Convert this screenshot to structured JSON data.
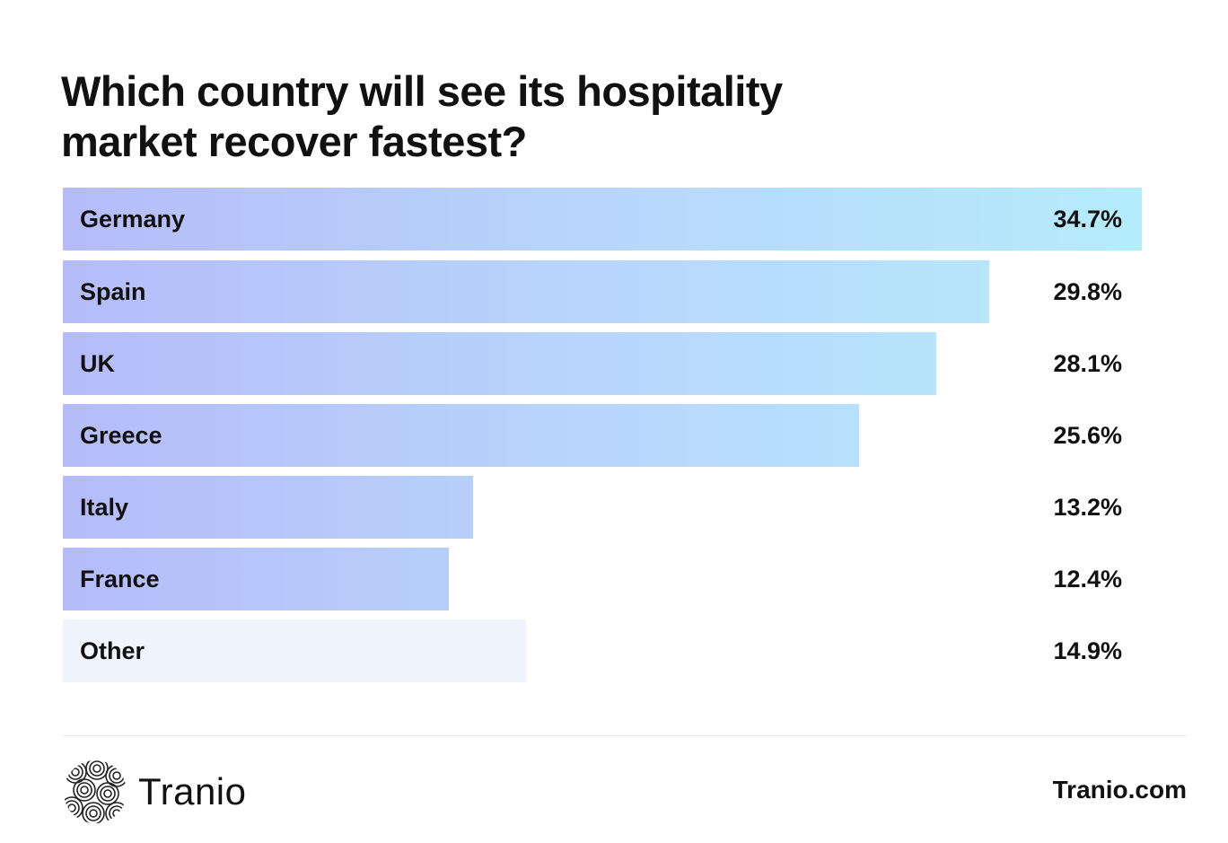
{
  "chart_data": {
    "type": "bar",
    "orientation": "horizontal",
    "title": "Which country will see its hospitality market recover fastest?",
    "categories": [
      "Germany",
      "Spain",
      "UK",
      "Greece",
      "Italy",
      "France",
      "Other"
    ],
    "values": [
      34.7,
      29.8,
      28.1,
      25.6,
      13.2,
      12.4,
      14.9
    ],
    "value_labels": [
      "34.7%",
      "29.8%",
      "28.1%",
      "25.6%",
      "13.2%",
      "12.4%",
      "14.9%"
    ],
    "xlim": [
      0,
      34.7
    ],
    "grid": false,
    "legend": "none",
    "colors": {
      "gradient_start": "#b5bcf9",
      "gradient_end": "#b5ecfb",
      "other": "#eff4fd"
    }
  },
  "footer": {
    "logo_text": "Tranio",
    "site": "Tranio.com"
  }
}
